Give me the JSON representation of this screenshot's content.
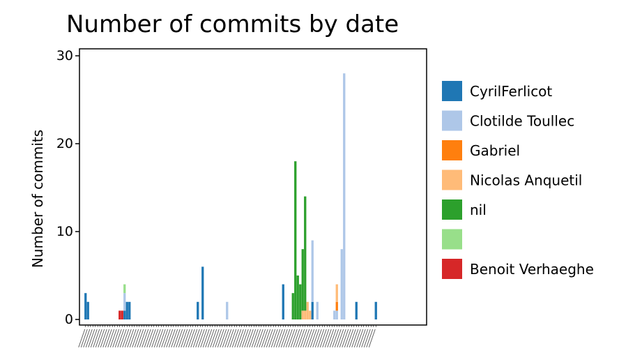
{
  "chart_data": {
    "type": "bar",
    "stacked": true,
    "title": "Number of commits by date",
    "xlabel": "",
    "ylabel": "Number of commits",
    "ylim": [
      0,
      31
    ],
    "yticks": [
      0,
      10,
      20,
      30
    ],
    "grid": false,
    "legend_position": "right",
    "bins": 120,
    "series": [
      {
        "name": "CyrilFerlicot",
        "color": "#1f77b4",
        "points": [
          [
            1,
            3
          ],
          [
            2,
            2
          ],
          [
            17,
            1
          ],
          [
            18,
            2
          ],
          [
            19,
            2
          ],
          [
            47,
            2
          ],
          [
            49,
            6
          ],
          [
            82,
            4
          ],
          [
            94,
            2
          ],
          [
            112,
            2
          ],
          [
            120,
            2
          ]
        ]
      },
      {
        "name": "Clotilde Toullec",
        "color": "#aec7e8",
        "points": [
          [
            17,
            2
          ],
          [
            59,
            2
          ],
          [
            94,
            7
          ],
          [
            96,
            2
          ],
          [
            103,
            1
          ],
          [
            104,
            1
          ],
          [
            106,
            8
          ],
          [
            107,
            28
          ]
        ]
      },
      {
        "name": "Gabriel",
        "color": "#ff7f0e",
        "points": [
          [
            104,
            1
          ]
        ]
      },
      {
        "name": "Nicolas Anquetil",
        "color": "#ffbb78",
        "points": [
          [
            90,
            1
          ],
          [
            91,
            1
          ],
          [
            92,
            2
          ],
          [
            93,
            1
          ],
          [
            104,
            2
          ]
        ]
      },
      {
        "name": "nil",
        "color": "#2ca02c",
        "points": [
          [
            86,
            3
          ],
          [
            87,
            18
          ],
          [
            88,
            5
          ],
          [
            89,
            4
          ],
          [
            90,
            7
          ],
          [
            91,
            13
          ]
        ]
      },
      {
        "name": "",
        "color": "#98df8a",
        "points": [
          [
            17,
            1
          ]
        ]
      },
      {
        "name": "Benoit Verhaeghe",
        "color": "#d62728",
        "points": [
          [
            15,
            1
          ],
          [
            16,
            1
          ]
        ]
      }
    ]
  }
}
